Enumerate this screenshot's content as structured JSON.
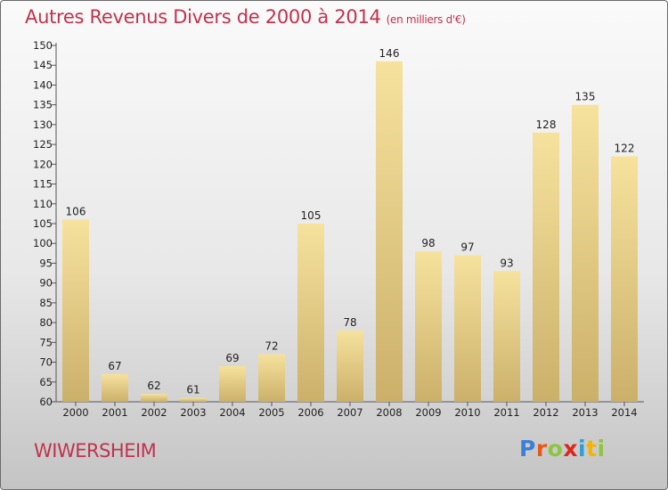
{
  "title": "Autres Revenus Divers de 2000 à 2014",
  "unit_note": "(en milliers d'€)",
  "location": "WIWERSHEIM",
  "brand": {
    "letters": [
      "P",
      "r",
      "o",
      "x",
      "i",
      "t",
      "i"
    ],
    "colors": [
      "#3d7fd6",
      "#e85a1b",
      "#8cc63f",
      "#e0241b",
      "#2aa0d8",
      "#f5b400",
      "#8cc63f"
    ]
  },
  "colors": {
    "title": "#c0334d",
    "bar_light": "#f6e29d",
    "bar_dark": "#cbb06a"
  },
  "chart_data": {
    "type": "bar",
    "categories": [
      "2000",
      "2001",
      "2002",
      "2003",
      "2004",
      "2005",
      "2006",
      "2007",
      "2008",
      "2009",
      "2010",
      "2011",
      "2012",
      "2013",
      "2014"
    ],
    "values": [
      106,
      67,
      62,
      61,
      69,
      72,
      105,
      78,
      146,
      98,
      97,
      93,
      128,
      135,
      122
    ],
    "ylim": [
      60,
      150
    ],
    "yticks": [
      60,
      65,
      70,
      75,
      80,
      85,
      90,
      95,
      100,
      105,
      110,
      115,
      120,
      125,
      130,
      135,
      140,
      145,
      150
    ],
    "grid": false,
    "legend": "none"
  }
}
